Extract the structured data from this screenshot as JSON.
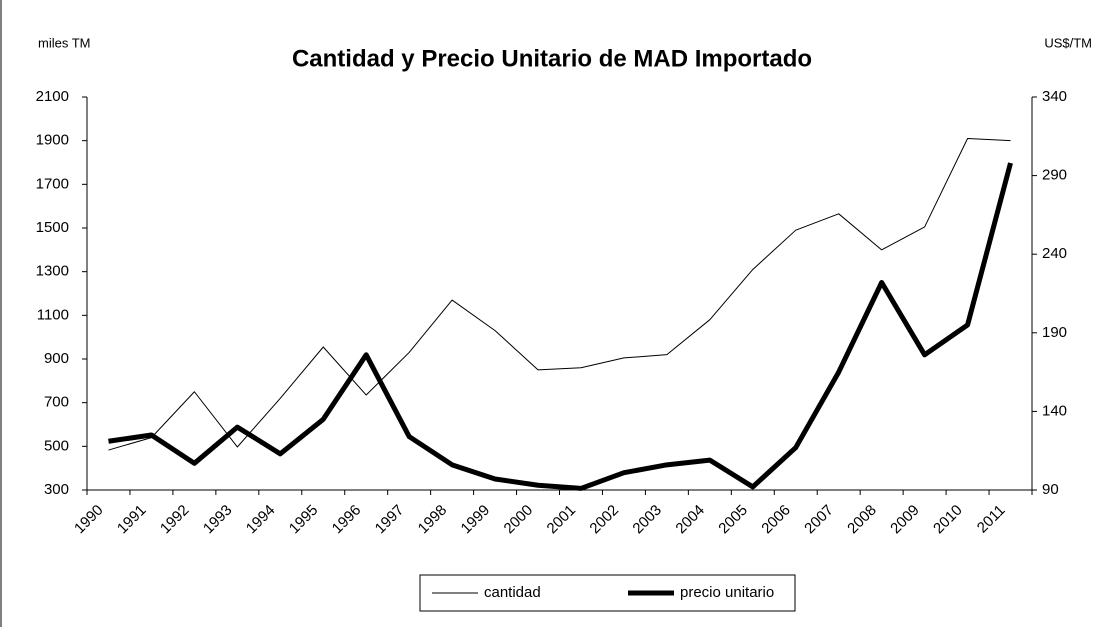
{
  "chart_data": {
    "type": "line",
    "title": "Cantidad y Precio Unitario de MAD Importado",
    "ylabel": "miles TM",
    "y2label": "US$/TM",
    "categories": [
      "1990",
      "1991",
      "1992",
      "1993",
      "1994",
      "1995",
      "1996",
      "1997",
      "1998",
      "1999",
      "2000",
      "2001",
      "2002",
      "2003",
      "2004",
      "2005",
      "2006",
      "2007",
      "2008",
      "2009",
      "2010",
      "2011"
    ],
    "series": [
      {
        "name": "cantidad",
        "color": "#000000",
        "width": 1,
        "values": [
          483,
          540,
          750,
          497,
          720,
          955,
          735,
          930,
          1170,
          1030,
          850,
          860,
          905,
          920,
          1080,
          1310,
          1490,
          1565,
          1400,
          1505,
          1910,
          1900
        ]
      },
      {
        "name": "precio unitario",
        "color": "#000000",
        "width": 5,
        "axis": "y2",
        "values": [
          121,
          125,
          107,
          130,
          113,
          135,
          176,
          124,
          106,
          97,
          93,
          91,
          101,
          106,
          109,
          92,
          117,
          165,
          222,
          176,
          195,
          298
        ]
      }
    ],
    "ylim": [
      300,
      2100
    ],
    "yticks": [
      300,
      500,
      700,
      900,
      1100,
      1300,
      1500,
      1700,
      1900,
      2100
    ],
    "y2lim": [
      90,
      340
    ],
    "y2ticks": [
      90,
      140,
      190,
      240,
      290,
      340
    ]
  }
}
